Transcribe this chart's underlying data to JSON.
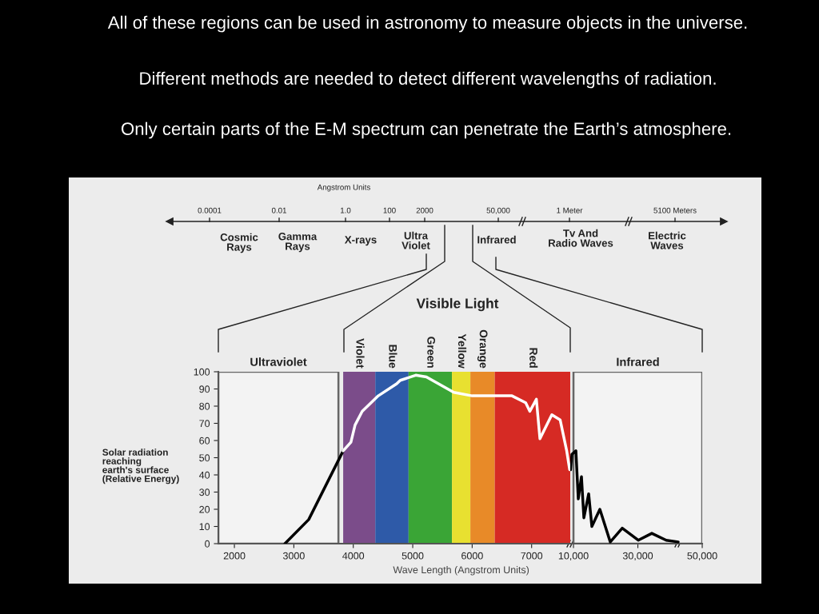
{
  "chart_data": [
    {
      "type": "other",
      "title": "All of these regions can be used in astronomy to measure objects in the universe.",
      "subtitle": "Different methods are needed to detect different wavelengths of radiation.",
      "annotations": [
        "Only certain parts of the E-M spectrum can penetrate the Earth’s atmosphere.",
        "Angstrom Units",
        "0.0001",
        "0.01",
        "1.0",
        "100",
        "2000",
        "50,000",
        "1 Meter",
        "5100 Meters",
        "Cosmic\nRays",
        "Gamma\nRays",
        "X-rays",
        "Ultra\nViolet",
        "Infrared",
        "Tv And\nRadio Waves",
        "Electric\nWaves",
        "Visible Light"
      ]
    },
    {
      "type": "line",
      "xlabel": "Wave Length (Angstrom Units)",
      "ylabel": "Solar radiation\nreaching\nearth's surface\n(Relative Energy)",
      "xlim": [
        1730,
        7650
      ],
      "ylim": [
        0,
        100
      ],
      "xticks": [
        2000,
        3000,
        4000,
        5000,
        6000,
        7000
      ],
      "yticks": [
        0,
        10,
        20,
        30,
        40,
        50,
        60,
        70,
        80,
        90,
        100
      ],
      "grid": false,
      "line_style": "solid",
      "bands": [
        {
          "axis": "x",
          "from": 1730,
          "to": 3750,
          "label": "Ultraviolet",
          "color": "#f3f3f3"
        },
        {
          "axis": "x",
          "from": 3830,
          "to": 4370,
          "label": "Violet",
          "color": "#7b4c8a"
        },
        {
          "axis": "x",
          "from": 4370,
          "to": 4930,
          "label": "Blue",
          "color": "#2e5aa8"
        },
        {
          "axis": "x",
          "from": 4930,
          "to": 5660,
          "label": "Green",
          "color": "#3aa536"
        },
        {
          "axis": "x",
          "from": 5660,
          "to": 5970,
          "label": "Yellow",
          "color": "#e8e030"
        },
        {
          "axis": "x",
          "from": 5970,
          "to": 6380,
          "label": "Orange",
          "color": "#e88a28"
        },
        {
          "axis": "x",
          "from": 6380,
          "to": 7650,
          "label": "Red",
          "color": "#d62a24"
        }
      ],
      "series": [
        {
          "color": "#000000",
          "x": [
            2850,
            3250,
            3830
          ],
          "values": [
            0,
            14,
            54
          ]
        },
        {
          "color": "#ffffff",
          "x": [
            3830,
            3960,
            4030,
            4150,
            4420,
            4730,
            4790,
            5050,
            5230,
            5690,
            6000,
            6670,
            6900,
            6970,
            7080,
            7140,
            7340,
            7480,
            7590,
            7640
          ],
          "values": [
            54,
            59,
            69,
            77,
            86,
            93,
            95,
            98,
            97,
            88,
            86,
            86,
            82,
            77,
            84,
            61,
            75,
            72,
            54,
            43
          ]
        }
      ]
    },
    {
      "type": "line",
      "xlim": [
        9000,
        50000
      ],
      "ylim": [
        0,
        100
      ],
      "tick_labels": "x",
      "xticks": [
        {
          "value": 10000,
          "label": "10,000"
        },
        {
          "value": 30000,
          "label": "30,000"
        },
        {
          "value": 50000,
          "label": "50,000"
        }
      ],
      "grid": false,
      "line_style": "solid",
      "bands": [
        {
          "axis": "x",
          "from": 10000,
          "to": 50000,
          "label": "Infrared",
          "color": "#f3f3f3"
        }
      ],
      "series": [
        {
          "color": "#000000",
          "x": [
            9100,
            9500,
            10750,
            11490,
            12480,
            13230,
            14720,
            15710,
            18200,
            21430,
            25150,
            30120,
            34340,
            38810,
            42540
          ],
          "values": [
            43,
            52,
            54,
            26,
            39,
            15,
            29,
            10,
            20,
            1,
            9,
            2,
            6,
            2,
            1
          ]
        }
      ]
    }
  ]
}
